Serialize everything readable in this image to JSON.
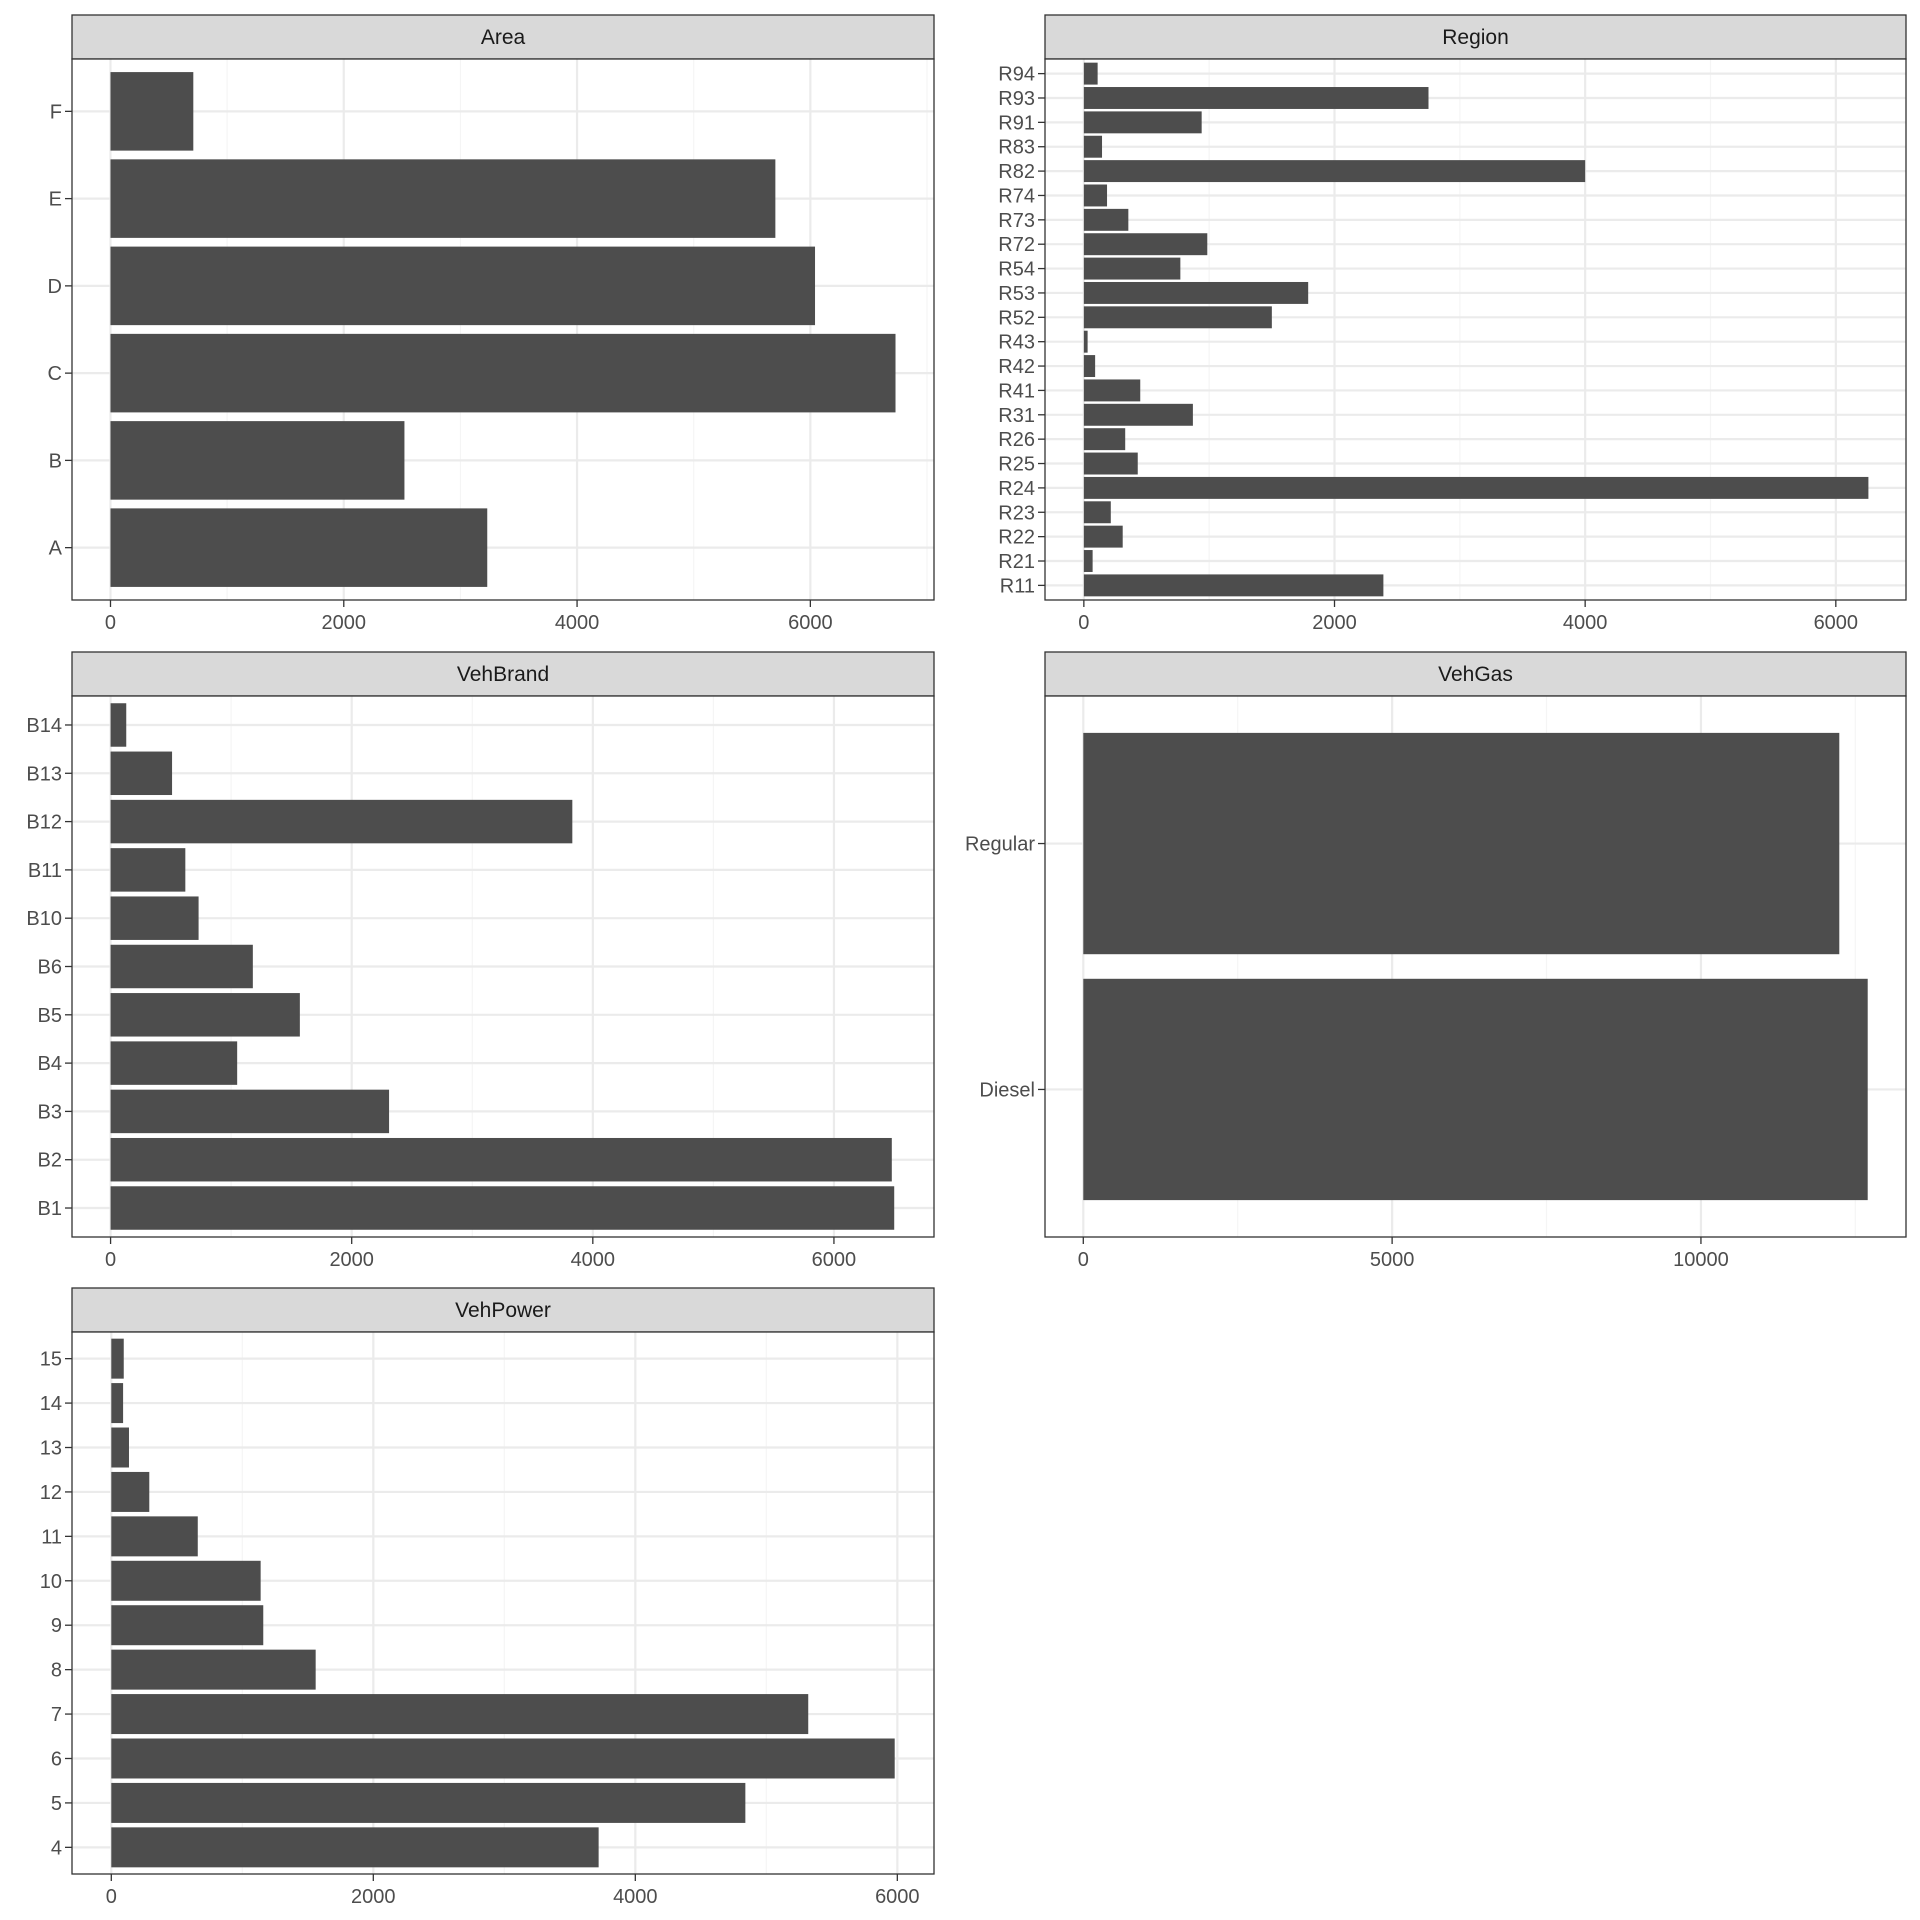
{
  "style": {
    "bar_color": "#4d4d4d",
    "strip_fill": "#d9d9d9",
    "strip_border": "#333333",
    "grid_major": "#ebebeb",
    "grid_minor": "#f5f5f5",
    "panel_border": "#333333",
    "text_color": "#4d4d4d"
  },
  "chart_data": [
    {
      "type": "bar",
      "orientation": "horizontal",
      "title": "Area",
      "categories": [
        "A",
        "B",
        "C",
        "D",
        "E",
        "F"
      ],
      "values": [
        3230,
        2520,
        6730,
        6040,
        5700,
        710
      ],
      "xlim": [
        -330,
        7060
      ],
      "xticks": [
        0,
        2000,
        4000,
        6000
      ]
    },
    {
      "type": "bar",
      "orientation": "horizontal",
      "title": "Region",
      "categories": [
        "R11",
        "R21",
        "R22",
        "R23",
        "R24",
        "R25",
        "R26",
        "R31",
        "R41",
        "R42",
        "R43",
        "R52",
        "R53",
        "R54",
        "R72",
        "R73",
        "R74",
        "R82",
        "R83",
        "R91",
        "R93",
        "R94"
      ],
      "values": [
        2390,
        70,
        310,
        215,
        6260,
        430,
        330,
        870,
        450,
        90,
        30,
        1500,
        1790,
        770,
        985,
        355,
        185,
        4000,
        145,
        940,
        2750,
        110
      ],
      "xlim": [
        -310,
        6560
      ],
      "xticks": [
        0,
        2000,
        4000,
        6000
      ]
    },
    {
      "type": "bar",
      "orientation": "horizontal",
      "title": "VehBrand",
      "categories": [
        "B1",
        "B2",
        "B3",
        "B4",
        "B5",
        "B6",
        "B10",
        "B11",
        "B12",
        "B13",
        "B14"
      ],
      "values": [
        6500,
        6480,
        2310,
        1050,
        1570,
        1180,
        730,
        620,
        3830,
        510,
        130
      ],
      "xlim": [
        -320,
        6830
      ],
      "xticks": [
        0,
        2000,
        4000,
        6000
      ]
    },
    {
      "type": "bar",
      "orientation": "horizontal",
      "title": "VehGas",
      "categories": [
        "Diesel",
        "Regular"
      ],
      "values": [
        12700,
        12240
      ],
      "xlim": [
        -620,
        13320
      ],
      "xticks": [
        0,
        5000,
        10000
      ]
    },
    {
      "type": "bar",
      "orientation": "horizontal",
      "title": "VehPower",
      "categories": [
        "4",
        "5",
        "6",
        "7",
        "8",
        "9",
        "10",
        "11",
        "12",
        "13",
        "14",
        "15"
      ],
      "values": [
        3720,
        4840,
        5980,
        5320,
        1560,
        1160,
        1140,
        660,
        290,
        135,
        90,
        95
      ],
      "xlim": [
        -300,
        6280
      ],
      "xticks": [
        0,
        2000,
        4000,
        6000
      ]
    }
  ]
}
